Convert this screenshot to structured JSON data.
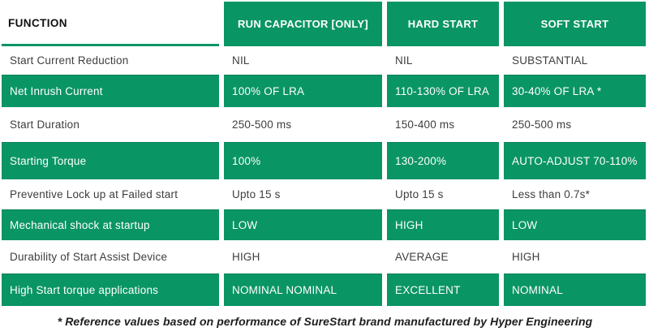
{
  "table": {
    "header": {
      "function_label": "FUNCTION",
      "columns": [
        "RUN CAPACITOR [ONLY]",
        "HARD START",
        "SOFT START"
      ]
    },
    "rows": [
      {
        "label": "Start Current Reduction",
        "values": [
          "NIL",
          "NIL",
          "SUBSTANTIAL"
        ]
      },
      {
        "label": "Net Inrush Current",
        "values": [
          "100% OF LRA",
          "110-130% OF LRA",
          "30-40% OF LRA *"
        ]
      },
      {
        "label": "Start Duration",
        "values": [
          "250-500 ms",
          "150-400 ms",
          "250-500 ms"
        ]
      },
      {
        "label": "Starting Torque",
        "values": [
          "100%",
          "130-200%",
          "AUTO-ADJUST 70-110%"
        ]
      },
      {
        "label": "Preventive Lock up at Failed start",
        "values": [
          "Upto 15 s",
          "Upto 15 s",
          "Less than 0.7s*"
        ]
      },
      {
        "label": "Mechanical shock at startup",
        "values": [
          "LOW",
          "HIGH",
          "LOW"
        ]
      },
      {
        "label": "Durability of Start Assist Device",
        "values": [
          "HIGH",
          "AVERAGE",
          "HIGH"
        ]
      },
      {
        "label": "High Start torque applications",
        "values": [
          "NOMINAL NOMINAL",
          "EXCELLENT",
          "NOMINAL"
        ]
      }
    ],
    "footnote": "* Reference values based on performance of SureStart brand manufactured by Hyper Engineering",
    "colors": {
      "accent_green": "#0a9565",
      "header_text": "#101010",
      "body_text": "#3e3e3e",
      "inverse_text": "#ffffff"
    }
  }
}
